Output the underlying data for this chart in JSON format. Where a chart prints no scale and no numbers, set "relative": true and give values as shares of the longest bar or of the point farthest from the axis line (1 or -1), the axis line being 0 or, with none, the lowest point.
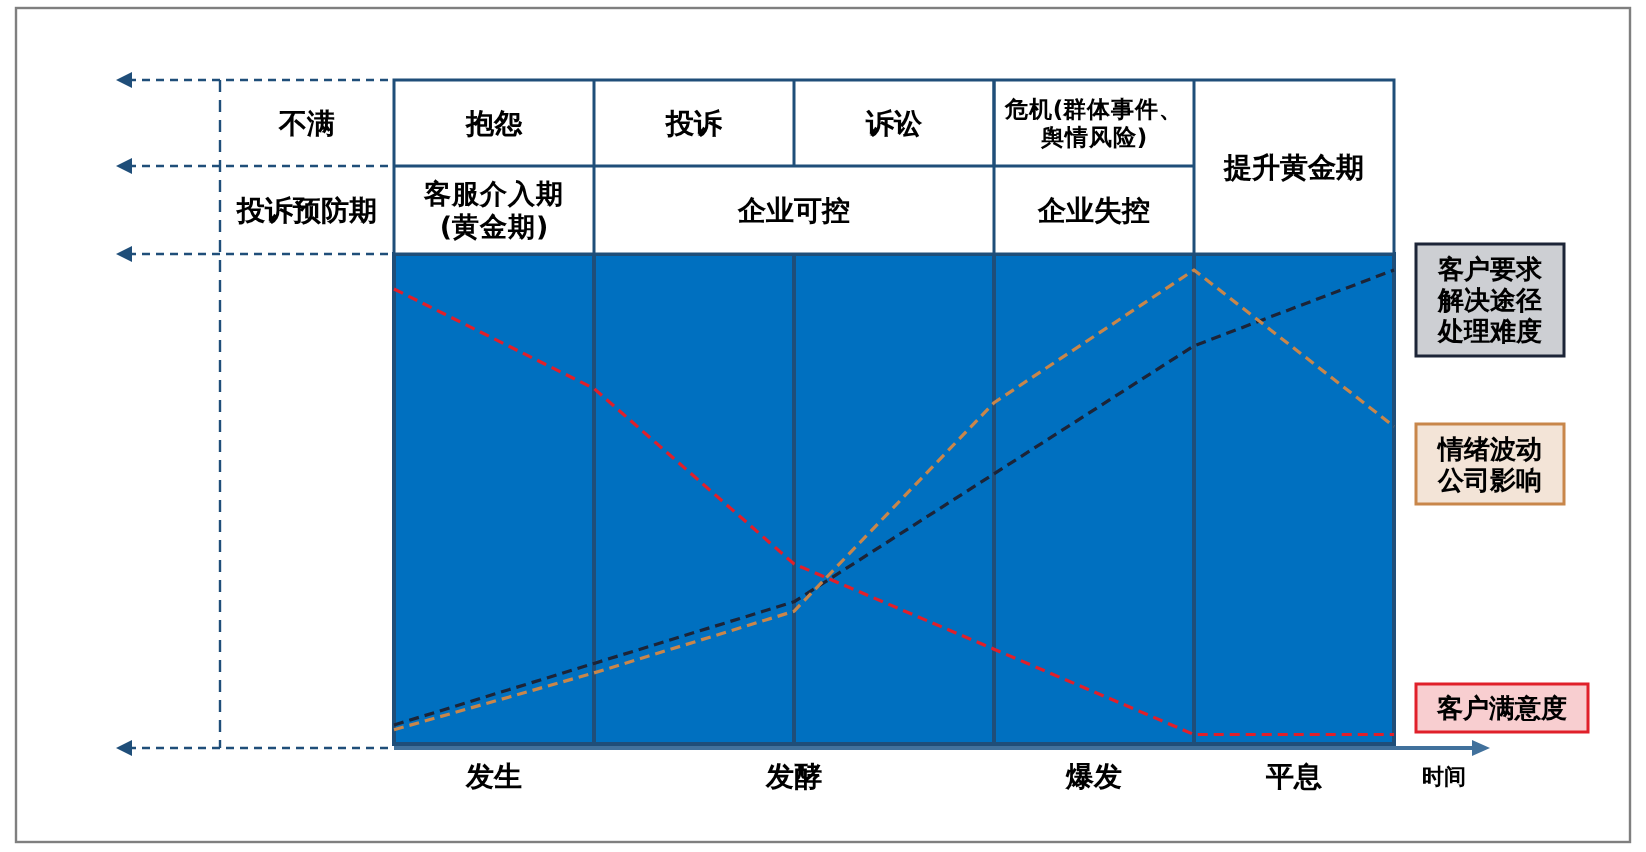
{
  "chart_data": {
    "type": "line",
    "relative": true,
    "grid": "x",
    "line_style": "dashed",
    "xlabel": "时间",
    "categories": [
      null,
      null,
      null,
      null,
      null,
      null
    ],
    "annotations": [
      "不满",
      "抱怨",
      "投诉",
      "诉讼",
      "危机(群体事件、舆情风险)",
      "提升黄金期",
      "投诉预防期",
      "客服介入期(黄金期)",
      "企业可控",
      "企业失控",
      "发生",
      "发酵",
      "爆发",
      "平息"
    ],
    "series": [
      {
        "name": "客户要求解决途径处理难度",
        "color": "#1c2437",
        "values": [
          0.04,
          0.17,
          0.3,
          0.57,
          0.84,
          1
        ]
      },
      {
        "name": "情绪波动公司影响",
        "color": "#c8864a",
        "values": [
          0.03,
          0.15,
          0.28,
          0.72,
          1,
          0.67
        ]
      },
      {
        "name": "客户满意度",
        "color": "#e0202a",
        "values": [
          0.96,
          0.75,
          0.38,
          0.2,
          0.02,
          0.02
        ]
      }
    ]
  }
}
